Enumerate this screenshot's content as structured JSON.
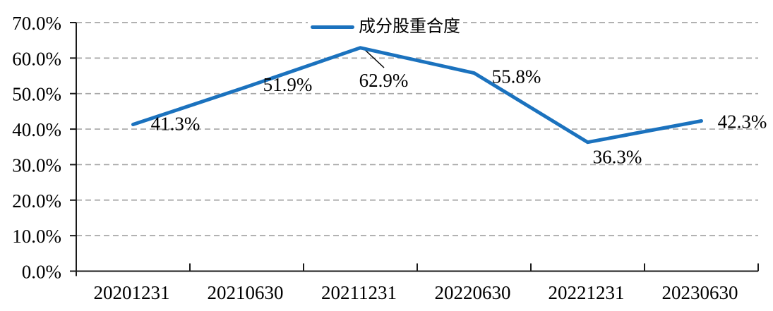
{
  "chart_data": {
    "type": "line",
    "title": "",
    "legend": {
      "label": "成分股重合度",
      "position": "top-center"
    },
    "categories": [
      "20201231",
      "20210630",
      "20211231",
      "20220630",
      "20221231",
      "20230630"
    ],
    "series": [
      {
        "name": "成分股重合度",
        "values": [
          41.3,
          51.9,
          62.9,
          55.8,
          36.3,
          42.3
        ],
        "color": "#1B72BE"
      }
    ],
    "data_labels": [
      "41.3%",
      "51.9%",
      "62.9%",
      "55.8%",
      "36.3%",
      "42.3%"
    ],
    "y_axis": {
      "ticks": [
        "0.0%",
        "10.0%",
        "20.0%",
        "30.0%",
        "40.0%",
        "50.0%",
        "60.0%",
        "70.0%"
      ],
      "min": 0,
      "max": 70,
      "step": 10
    },
    "x_axis": {
      "tick_style": "inside"
    },
    "grid": {
      "horizontal_dashed": true,
      "color": "#A6A6A6"
    },
    "colors": {
      "line": "#1B72BE",
      "gridline": "#A6A6A6",
      "axis": "#1A1A1A",
      "text": "#000000",
      "background": "#FFFFFF"
    }
  }
}
